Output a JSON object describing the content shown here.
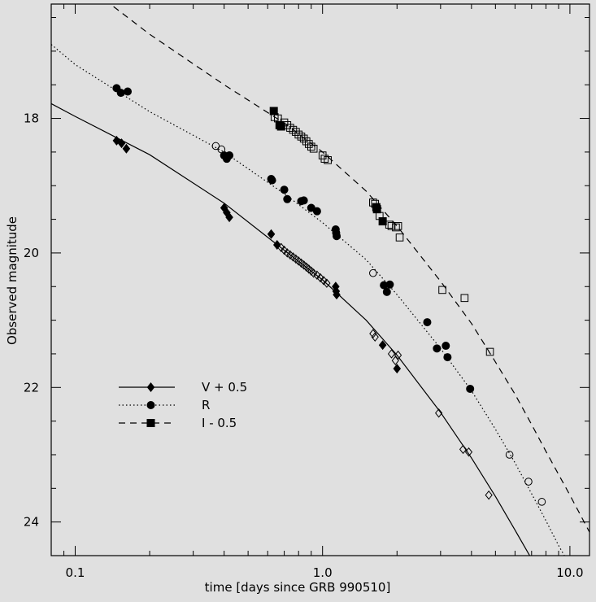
{
  "chart_data": {
    "type": "scatter",
    "title": "",
    "xlabel": "time [days since GRB 990510]",
    "ylabel": "Observed magnitude",
    "xscale": "log",
    "xlim": [
      0.08,
      12
    ],
    "ylim": [
      24.5,
      16.3
    ],
    "y_inverted": true,
    "x_ticks": [
      0.1,
      1.0,
      10.0
    ],
    "x_tick_labels": [
      "0.1",
      "1.0",
      "10.0"
    ],
    "y_ticks": [
      18,
      20,
      22,
      24
    ],
    "y_tick_labels": [
      "18",
      "20",
      "22",
      "24"
    ],
    "grid": false,
    "legend_position": "lower-left",
    "background": "#e0e0e0",
    "series": [
      {
        "name": "V + 0.5",
        "marker": "diamond",
        "line": "solid",
        "points_filled": [
          [
            0.147,
            18.33
          ],
          [
            0.154,
            18.37
          ],
          [
            0.161,
            18.45
          ],
          [
            0.4,
            19.33
          ],
          [
            0.41,
            19.4
          ],
          [
            0.42,
            19.47
          ],
          [
            0.62,
            19.72
          ],
          [
            0.655,
            19.88
          ],
          [
            1.13,
            20.5
          ],
          [
            1.135,
            20.57
          ],
          [
            1.14,
            20.62
          ],
          [
            1.75,
            21.37
          ],
          [
            2.0,
            21.72
          ]
        ],
        "points_open": [
          [
            0.68,
            19.92
          ],
          [
            0.7,
            19.96
          ],
          [
            0.72,
            20.0
          ],
          [
            0.74,
            20.03
          ],
          [
            0.76,
            20.06
          ],
          [
            0.78,
            20.09
          ],
          [
            0.8,
            20.12
          ],
          [
            0.82,
            20.15
          ],
          [
            0.84,
            20.18
          ],
          [
            0.86,
            20.21
          ],
          [
            0.88,
            20.24
          ],
          [
            0.9,
            20.27
          ],
          [
            0.92,
            20.3
          ],
          [
            0.95,
            20.33
          ],
          [
            0.98,
            20.37
          ],
          [
            1.01,
            20.41
          ],
          [
            1.04,
            20.45
          ],
          [
            1.6,
            21.2
          ],
          [
            1.63,
            21.25
          ],
          [
            1.9,
            21.5
          ],
          [
            1.97,
            21.6
          ],
          [
            2.02,
            21.52
          ],
          [
            2.95,
            22.38
          ],
          [
            3.7,
            22.92
          ],
          [
            3.9,
            22.96
          ],
          [
            4.7,
            23.6
          ]
        ],
        "model": [
          [
            0.08,
            17.78
          ],
          [
            0.1,
            17.97
          ],
          [
            0.2,
            18.54
          ],
          [
            0.4,
            19.26
          ],
          [
            0.7,
            19.96
          ],
          [
            1.0,
            20.4
          ],
          [
            1.5,
            21.0
          ],
          [
            2.0,
            21.52
          ],
          [
            3.0,
            22.37
          ],
          [
            4.0,
            23.05
          ],
          [
            5.0,
            23.62
          ],
          [
            6.0,
            24.12
          ],
          [
            7.0,
            24.55
          ]
        ]
      },
      {
        "name": "R",
        "marker": "circle",
        "line": "dotted",
        "points_filled": [
          [
            0.147,
            17.55
          ],
          [
            0.153,
            17.62
          ],
          [
            0.163,
            17.6
          ],
          [
            0.4,
            18.55
          ],
          [
            0.41,
            18.6
          ],
          [
            0.42,
            18.55
          ],
          [
            0.62,
            18.9
          ],
          [
            0.625,
            18.92
          ],
          [
            0.7,
            19.06
          ],
          [
            0.72,
            19.2
          ],
          [
            0.82,
            19.23
          ],
          [
            0.84,
            19.22
          ],
          [
            0.9,
            19.33
          ],
          [
            0.95,
            19.38
          ],
          [
            1.13,
            19.65
          ],
          [
            1.135,
            19.7
          ],
          [
            1.14,
            19.75
          ],
          [
            1.77,
            20.48
          ],
          [
            1.82,
            20.58
          ],
          [
            1.87,
            20.47
          ],
          [
            2.65,
            21.03
          ],
          [
            2.9,
            21.42
          ],
          [
            3.15,
            21.38
          ],
          [
            3.2,
            21.55
          ],
          [
            3.95,
            22.02
          ]
        ],
        "points_open": [
          [
            0.37,
            18.41
          ],
          [
            0.39,
            18.46
          ],
          [
            1.6,
            20.3
          ],
          [
            5.7,
            23.0
          ],
          [
            6.8,
            23.4
          ],
          [
            7.7,
            23.7
          ]
        ],
        "model": [
          [
            0.08,
            16.9
          ],
          [
            0.1,
            17.2
          ],
          [
            0.2,
            17.9
          ],
          [
            0.4,
            18.5
          ],
          [
            0.7,
            19.12
          ],
          [
            1.0,
            19.55
          ],
          [
            1.5,
            20.1
          ],
          [
            2.0,
            20.62
          ],
          [
            3.0,
            21.42
          ],
          [
            4.0,
            22.05
          ],
          [
            5.0,
            22.62
          ],
          [
            6.0,
            23.12
          ],
          [
            7.0,
            23.58
          ],
          [
            8.0,
            23.98
          ],
          [
            9.0,
            24.35
          ],
          [
            9.5,
            24.5
          ]
        ]
      },
      {
        "name": "I - 0.5",
        "marker": "square",
        "line": "dashed",
        "points_filled": [
          [
            0.635,
            17.89
          ],
          [
            0.67,
            18.1
          ],
          [
            0.68,
            18.12
          ],
          [
            1.65,
            19.32
          ],
          [
            1.66,
            19.35
          ],
          [
            1.75,
            19.53
          ]
        ],
        "points_open": [
          [
            0.64,
            17.98
          ],
          [
            0.66,
            18.0
          ],
          [
            0.7,
            18.06
          ],
          [
            0.72,
            18.1
          ],
          [
            0.74,
            18.14
          ],
          [
            0.76,
            18.17
          ],
          [
            0.78,
            18.2
          ],
          [
            0.8,
            18.24
          ],
          [
            0.82,
            18.27
          ],
          [
            0.84,
            18.3
          ],
          [
            0.86,
            18.34
          ],
          [
            0.88,
            18.38
          ],
          [
            0.9,
            18.42
          ],
          [
            0.92,
            18.45
          ],
          [
            1.0,
            18.55
          ],
          [
            1.02,
            18.6
          ],
          [
            1.05,
            18.62
          ],
          [
            1.6,
            19.25
          ],
          [
            1.63,
            19.27
          ],
          [
            1.7,
            19.45
          ],
          [
            1.86,
            19.58
          ],
          [
            1.9,
            19.6
          ],
          [
            1.98,
            19.62
          ],
          [
            2.02,
            19.6
          ],
          [
            2.05,
            19.77
          ],
          [
            3.05,
            20.55
          ],
          [
            3.75,
            20.67
          ],
          [
            4.75,
            21.47
          ]
        ],
        "model": [
          [
            0.08,
            15.6
          ],
          [
            0.1,
            15.9
          ],
          [
            0.2,
            16.75
          ],
          [
            0.4,
            17.5
          ],
          [
            0.7,
            18.07
          ],
          [
            1.0,
            18.5
          ],
          [
            1.5,
            19.08
          ],
          [
            2.0,
            19.6
          ],
          [
            3.0,
            20.42
          ],
          [
            4.0,
            21.05
          ],
          [
            5.0,
            21.62
          ],
          [
            6.0,
            22.1
          ],
          [
            7.0,
            22.55
          ],
          [
            8.0,
            22.95
          ],
          [
            10.0,
            23.6
          ],
          [
            12.0,
            24.15
          ]
        ]
      }
    ]
  }
}
